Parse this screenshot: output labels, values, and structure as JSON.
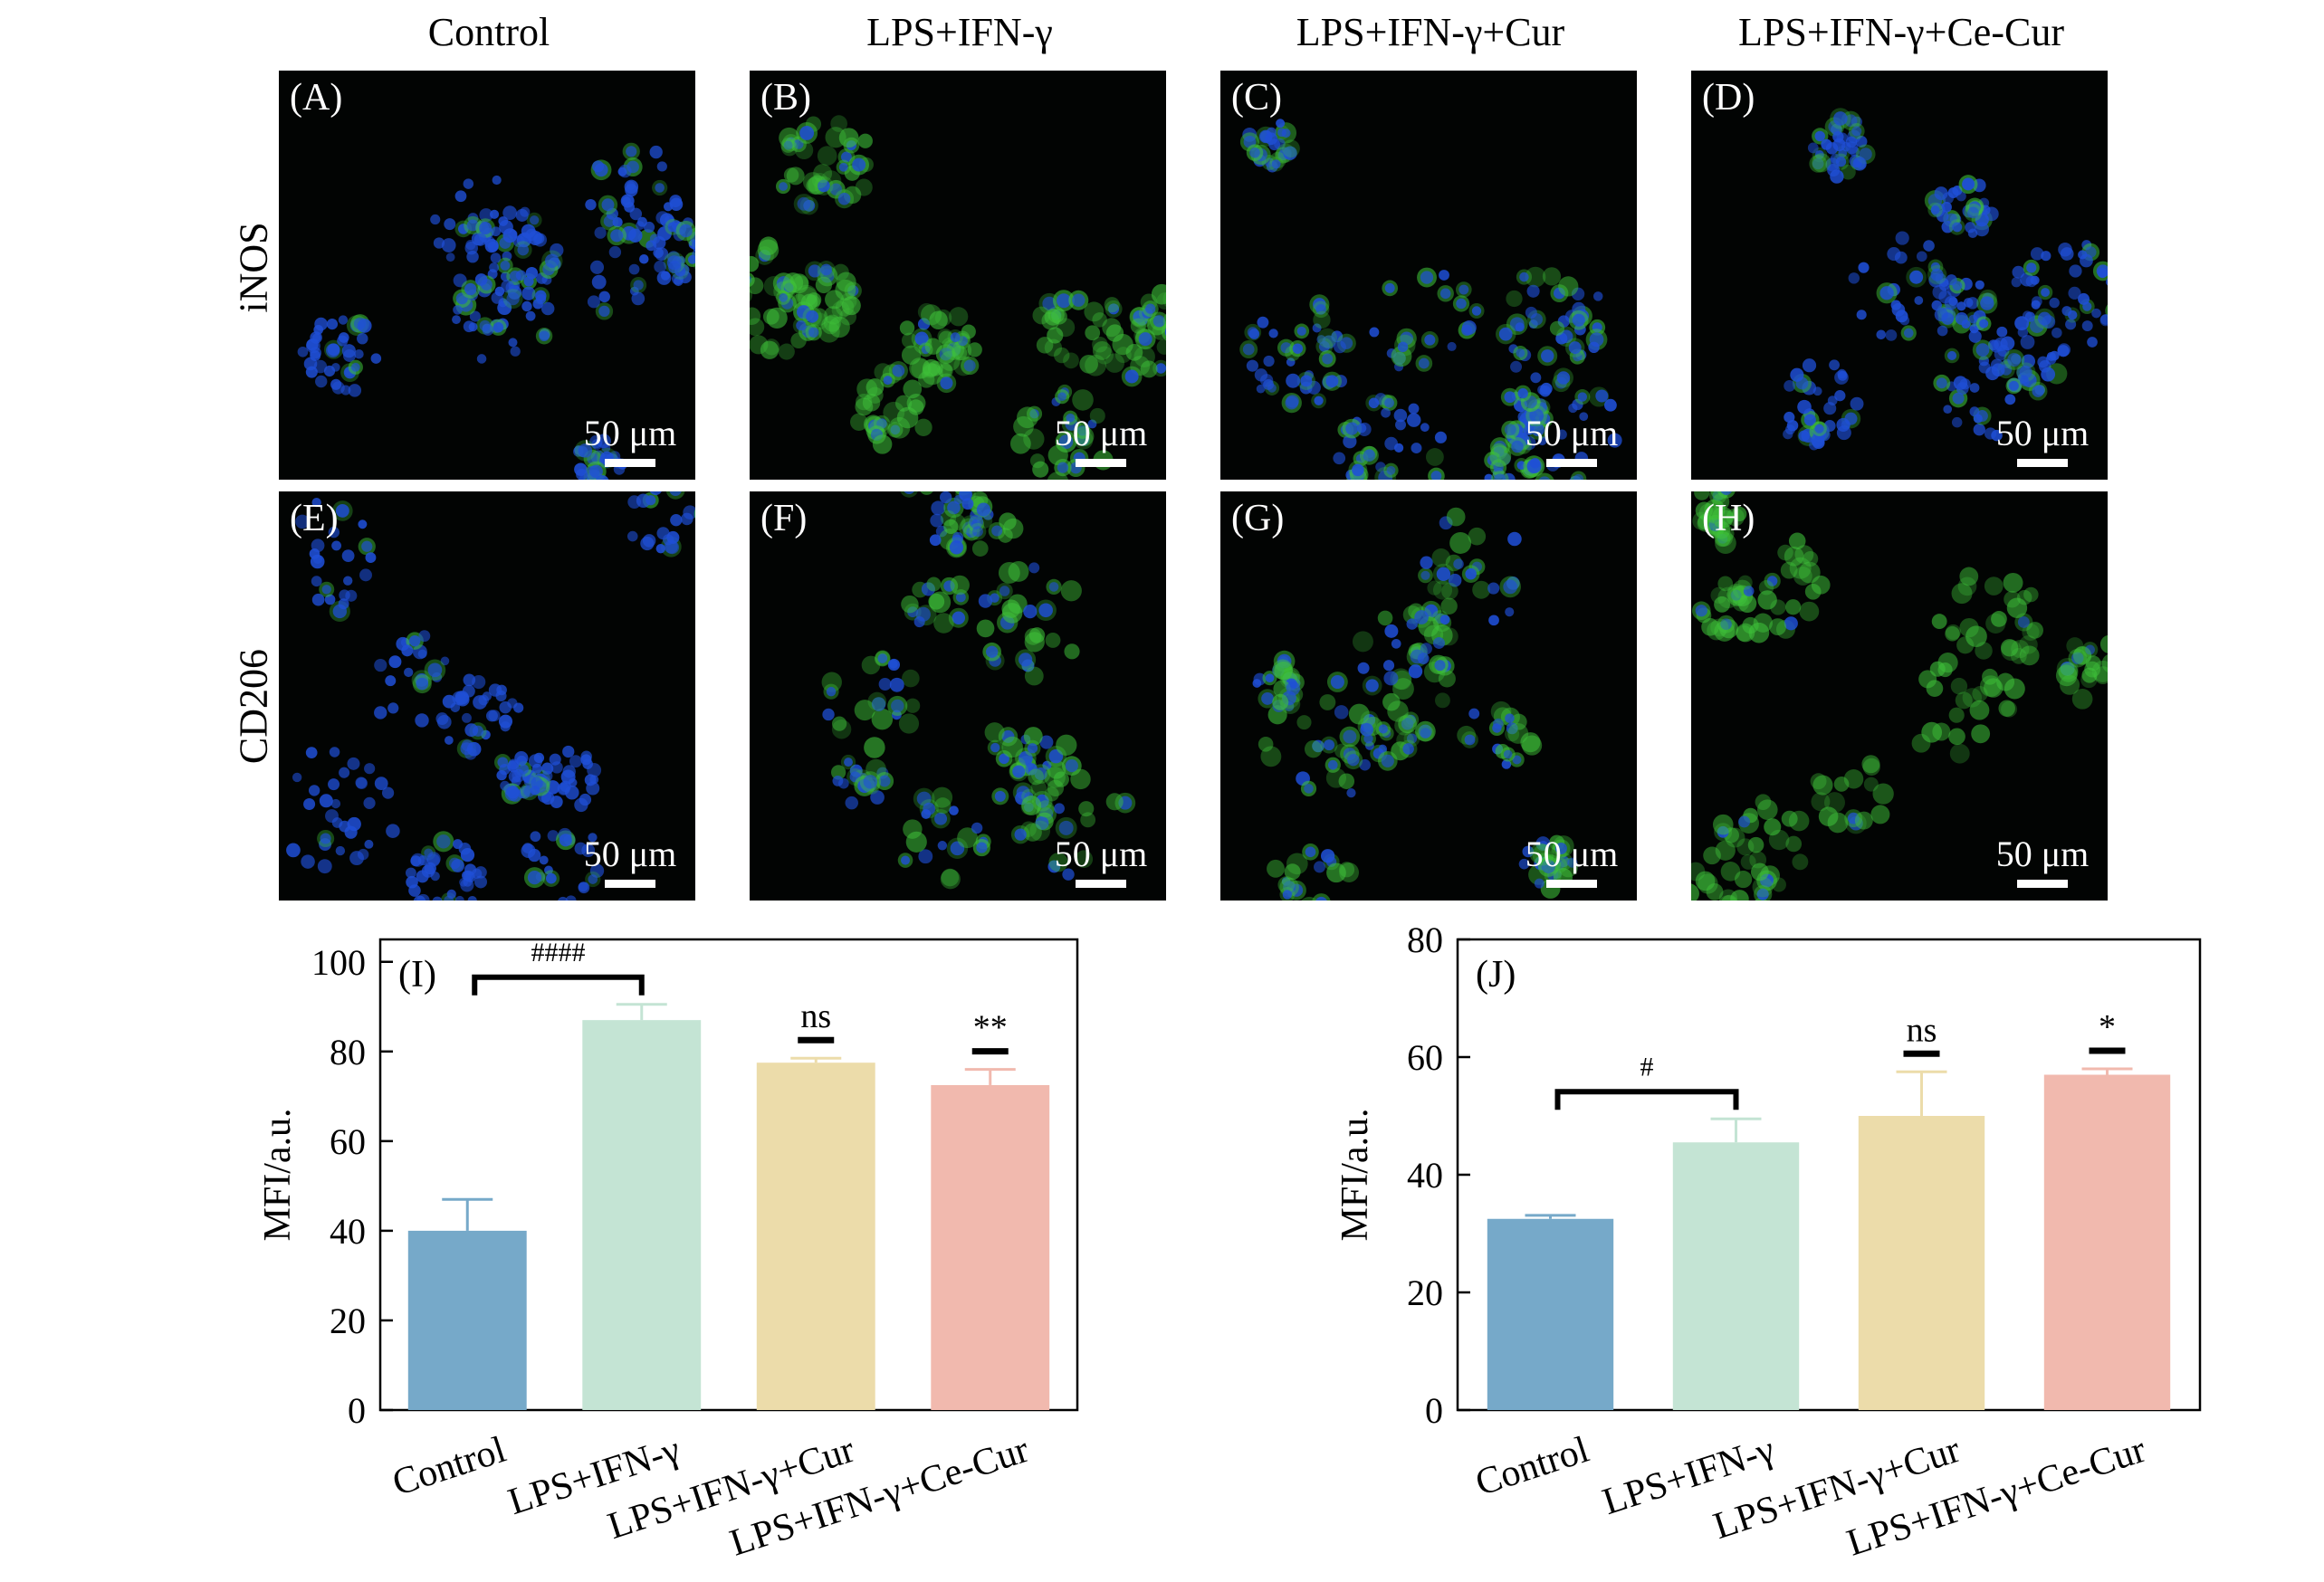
{
  "columns": [
    "Control",
    "LPS+IFN-γ",
    "LPS+IFN-γ+Cur",
    "LPS+IFN-γ+Ce-Cur"
  ],
  "rows": [
    "iNOS",
    "CD206"
  ],
  "panels": [
    {
      "label": "(A)",
      "scale": "50 μm",
      "green": 0.15,
      "blue": 0.95
    },
    {
      "label": "(B)",
      "scale": "50 μm",
      "green": 0.95,
      "blue": 0.3
    },
    {
      "label": "(C)",
      "scale": "50 μm",
      "green": 0.45,
      "blue": 0.85
    },
    {
      "label": "(D)",
      "scale": "50 μm",
      "green": 0.25,
      "blue": 0.95
    },
    {
      "label": "(E)",
      "scale": "50 μm",
      "green": 0.1,
      "blue": 0.95
    },
    {
      "label": "(F)",
      "scale": "50 μm",
      "green": 0.55,
      "blue": 0.45
    },
    {
      "label": "(G)",
      "scale": "50 μm",
      "green": 0.55,
      "blue": 0.45
    },
    {
      "label": "(H)",
      "scale": "50 μm",
      "green": 0.85,
      "blue": 0.1
    }
  ],
  "colors": {
    "bars": [
      "#76a9c9",
      "#c4e4d4",
      "#ecdcaa",
      "#f1b9ae"
    ],
    "nucleus": "#1f4fd6",
    "stain": "#3fc23a"
  },
  "chart_data": [
    {
      "type": "bar",
      "panel_label": "(I)",
      "categories": [
        "Control",
        "LPS+IFN-γ",
        "LPS+IFN-γ+Cur",
        "LPS+IFN-γ+Ce-Cur"
      ],
      "values": [
        40,
        87,
        77.5,
        72.5
      ],
      "errors": [
        7,
        3.5,
        1,
        3.5
      ],
      "ylabel": "MFI/a.u.",
      "ylim": [
        0,
        105
      ],
      "yticks": [
        0,
        20,
        40,
        60,
        80,
        100
      ],
      "significance": [
        {
          "text": "####",
          "type": "bracket",
          "from": 0,
          "to": 1
        },
        {
          "text": "ns",
          "type": "dash",
          "at": 2
        },
        {
          "text": "**",
          "type": "dash",
          "at": 3
        }
      ]
    },
    {
      "type": "bar",
      "panel_label": "(J)",
      "categories": [
        "Control",
        "LPS+IFN-γ",
        "LPS+IFN-γ+Cur",
        "LPS+IFN-γ+Ce-Cur"
      ],
      "values": [
        32.5,
        45.5,
        50,
        57
      ],
      "errors": [
        0.6,
        4,
        7.5,
        1
      ],
      "ylabel": "MFI/a.u.",
      "ylim": [
        0,
        80
      ],
      "yticks": [
        0,
        20,
        40,
        60,
        80
      ],
      "significance": [
        {
          "text": "#",
          "type": "bracket",
          "from": 0,
          "to": 1
        },
        {
          "text": "ns",
          "type": "dash",
          "at": 2
        },
        {
          "text": "*",
          "type": "dash",
          "at": 3
        }
      ]
    }
  ]
}
